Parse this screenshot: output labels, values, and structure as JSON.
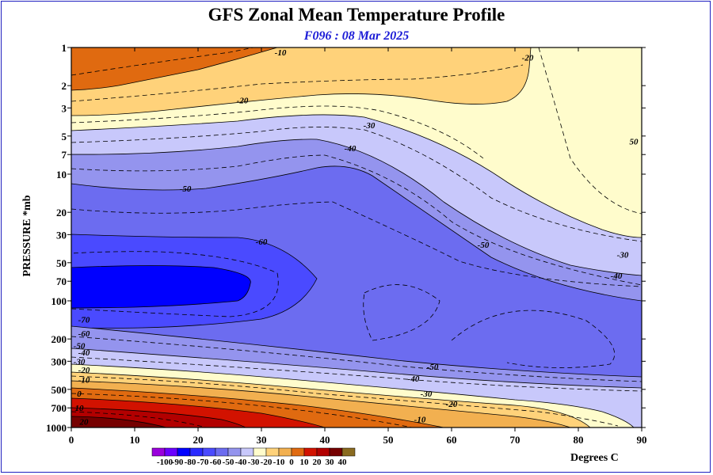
{
  "header": {
    "title": "GFS Zonal Mean Temperature Profile",
    "subtitle": "F096 : 08 Mar 2025"
  },
  "colorbar": {
    "units": "Degrees C",
    "ticks": [
      "-100",
      "-90",
      "-80",
      "-70",
      "-60",
      "-50",
      "-40",
      "-30",
      "-20",
      "-10",
      "0",
      "10",
      "20",
      "30",
      "40"
    ],
    "colors": [
      "#9a00dc",
      "#6a00ff",
      "#0000ff",
      "#2a2aff",
      "#4a4aff",
      "#6c6cf0",
      "#9494ee",
      "#c8c8fb",
      "#fffccc",
      "#ffd27a",
      "#f2b050",
      "#e06a10",
      "#d21200",
      "#b20000",
      "#760000",
      "#8a6b20"
    ]
  },
  "chart_data": {
    "type": "contour",
    "title": "GFS Zonal Mean Temperature Profile",
    "subtitle": "F096 : 08 Mar 2025",
    "xlabel": "",
    "ylabel": "PRESSURE *mb",
    "x_ticks": [
      "0",
      "10",
      "20",
      "30",
      "40",
      "50",
      "60",
      "70",
      "80",
      "90"
    ],
    "y_ticks": [
      "1",
      "2",
      "3",
      "5",
      "7",
      "10",
      "20",
      "30",
      "50",
      "70",
      "100",
      "200",
      "300",
      "500",
      "700",
      "1000"
    ],
    "xlim": [
      0,
      90
    ],
    "ylim": [
      1000,
      1
    ],
    "y_scale": "log",
    "contour_interval": 5,
    "contour_labels": [
      {
        "lat": 33,
        "p": 1,
        "text": "-10"
      },
      {
        "lat": 72,
        "p": 1.2,
        "text": "-20"
      },
      {
        "lat": 27,
        "p": 2.6,
        "text": "-20"
      },
      {
        "lat": 47,
        "p": 4.1,
        "text": "-30"
      },
      {
        "lat": 44,
        "p": 6.2,
        "text": "-40"
      },
      {
        "lat": 18,
        "p": 13,
        "text": "-50"
      },
      {
        "lat": 30,
        "p": 34,
        "text": "-60"
      },
      {
        "lat": 65,
        "p": 36,
        "text": "-50"
      },
      {
        "lat": 87,
        "p": 43,
        "text": "-30"
      },
      {
        "lat": 86,
        "p": 63,
        "text": "-40"
      },
      {
        "lat": 90,
        "p": 5.5,
        "text": "50"
      },
      {
        "lat": 2,
        "p": 140,
        "text": "-70"
      },
      {
        "lat": 2,
        "p": 180,
        "text": "-60"
      },
      {
        "lat": 1,
        "p": 225,
        "text": "-50"
      },
      {
        "lat": 2,
        "p": 255,
        "text": "-40"
      },
      {
        "lat": 1,
        "p": 300,
        "text": "-30"
      },
      {
        "lat": 2,
        "p": 350,
        "text": "-20"
      },
      {
        "lat": 2,
        "p": 420,
        "text": "-10"
      },
      {
        "lat": 1,
        "p": 540,
        "text": "0"
      },
      {
        "lat": 1,
        "p": 700,
        "text": "10"
      },
      {
        "lat": 2,
        "p": 900,
        "text": "20"
      },
      {
        "lat": 57,
        "p": 330,
        "text": "-50"
      },
      {
        "lat": 54,
        "p": 410,
        "text": "-40"
      },
      {
        "lat": 56,
        "p": 540,
        "text": "-30"
      },
      {
        "lat": 60,
        "p": 650,
        "text": "-20"
      },
      {
        "lat": 55,
        "p": 860,
        "text": "-10"
      }
    ]
  }
}
